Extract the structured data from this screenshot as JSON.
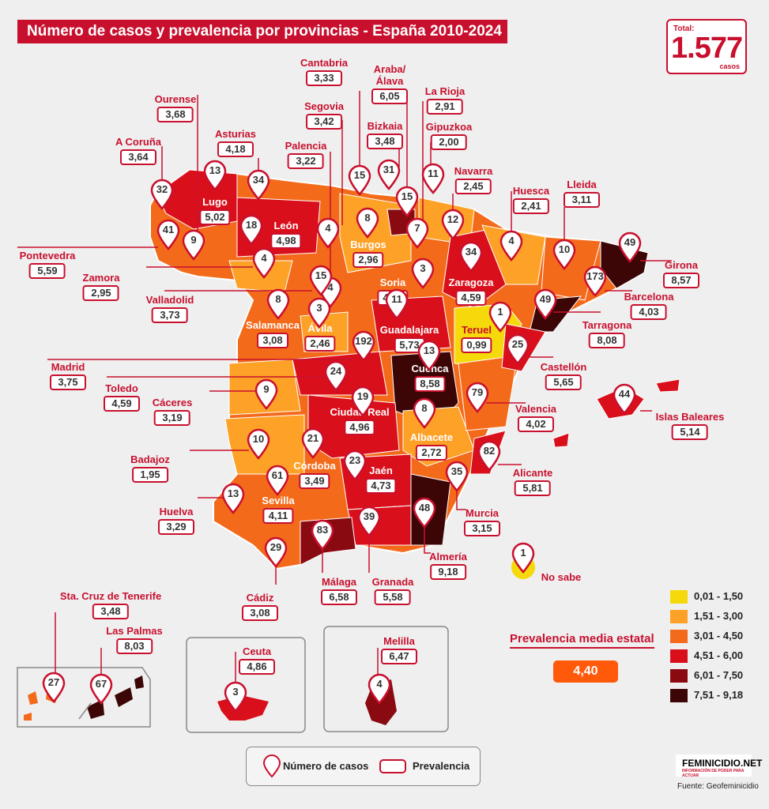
{
  "title": "Número de casos y prevalencia por provincias - España 2010-2024",
  "total": {
    "label": "Total:",
    "value": "1.577",
    "unit": "casos"
  },
  "provinces": [
    {
      "id": "cantabria",
      "name": "Cantabria",
      "cases": "15",
      "prevalence": "3,33"
    },
    {
      "id": "araba",
      "name": "Araba/ Álava",
      "cases": "15",
      "prevalence": "6,05"
    },
    {
      "id": "rioja",
      "name": "La Rioja",
      "cases": "7",
      "prevalence": "2,91"
    },
    {
      "id": "ourense",
      "name": "Ourense",
      "cases": "9",
      "prevalence": "3,68"
    },
    {
      "id": "segovia",
      "name": "Segovia",
      "cases": "4",
      "prevalence": "3,42"
    },
    {
      "id": "bizkaia",
      "name": "Bizkaia",
      "cases": "31",
      "prevalence": "3,48"
    },
    {
      "id": "gipuzkoa",
      "name": "Gipuzkoa",
      "cases": "11",
      "prevalence": "2,00"
    },
    {
      "id": "coruna",
      "name": "A Coruña",
      "cases": "32",
      "prevalence": "3,64"
    },
    {
      "id": "asturias",
      "name": "Asturias",
      "cases": "34",
      "prevalence": "4,18"
    },
    {
      "id": "palencia",
      "name": "Palencia",
      "cases": "4",
      "prevalence": "3,22"
    },
    {
      "id": "navarra",
      "name": "Navarra",
      "cases": "12",
      "prevalence": "2,45"
    },
    {
      "id": "huesca",
      "name": "Huesca",
      "cases": "4",
      "prevalence": "2,41"
    },
    {
      "id": "lleida",
      "name": "Lleida",
      "cases": "10",
      "prevalence": "3,11"
    },
    {
      "id": "lugo",
      "name": "Lugo",
      "cases": "13",
      "prevalence": "5,02"
    },
    {
      "id": "leon",
      "name": "León",
      "cases": "18",
      "prevalence": "4,98"
    },
    {
      "id": "burgos",
      "name": "Burgos",
      "cases": "8",
      "prevalence": "2,96"
    },
    {
      "id": "pontevedra",
      "name": "Pontevedra",
      "cases": "41",
      "prevalence": "5,59"
    },
    {
      "id": "zamora",
      "name": "Zamora",
      "cases": "4",
      "prevalence": "2,95"
    },
    {
      "id": "soria",
      "name": "Soria",
      "cases": "3",
      "prevalence": "4,46"
    },
    {
      "id": "zaragoza",
      "name": "Zaragoza",
      "cases": "34",
      "prevalence": "4,59"
    },
    {
      "id": "girona",
      "name": "Girona",
      "cases": "49",
      "prevalence": "8,57"
    },
    {
      "id": "barcelona",
      "name": "Barcelona",
      "cases": "173",
      "prevalence": "4,03"
    },
    {
      "id": "valladolid",
      "name": "Valladolid",
      "cases": "15",
      "prevalence": "3,73"
    },
    {
      "id": "salamanca",
      "name": "Salamanca",
      "cases": "8",
      "prevalence": "3,08"
    },
    {
      "id": "avila",
      "name": "Ávila",
      "cases": "3",
      "prevalence": "2,46"
    },
    {
      "id": "guadalajara",
      "name": "Guadalajara",
      "cases": "11",
      "prevalence": "5,73"
    },
    {
      "id": "teruel",
      "name": "Teruel",
      "cases": "1",
      "prevalence": "0,99"
    },
    {
      "id": "tarragona",
      "name": "Tarragona",
      "cases": "49",
      "prevalence": "8,08"
    },
    {
      "id": "madrid",
      "name": "Madrid",
      "cases": "192",
      "prevalence": "3,75"
    },
    {
      "id": "cuenca",
      "name": "Cuenca",
      "cases": "13",
      "prevalence": "8,58"
    },
    {
      "id": "castellon",
      "name": "Castellón",
      "cases": "25",
      "prevalence": "5,65"
    },
    {
      "id": "toledo",
      "name": "Toledo",
      "cases": "24",
      "prevalence": "4,59"
    },
    {
      "id": "caceres",
      "name": "Cáceres",
      "cases": "9",
      "prevalence": "3,19"
    },
    {
      "id": "ciudadreal",
      "name": "Ciudad Real",
      "cases": "19",
      "prevalence": "4,96"
    },
    {
      "id": "albacete",
      "name": "Albacete",
      "cases": "8",
      "prevalence": "2,72"
    },
    {
      "id": "valencia",
      "name": "Valencia",
      "cases": "79",
      "prevalence": "4,02"
    },
    {
      "id": "baleares",
      "name": "Islas Baleares",
      "cases": "44",
      "prevalence": "5,14"
    },
    {
      "id": "badajoz",
      "name": "Badajoz",
      "cases": "10",
      "prevalence": "1,95"
    },
    {
      "id": "cordoba",
      "name": "Córdoba",
      "cases": "21",
      "prevalence": "3,49"
    },
    {
      "id": "jaen",
      "name": "Jaén",
      "cases": "23",
      "prevalence": "4,73"
    },
    {
      "id": "alicante",
      "name": "Alicante",
      "cases": "82",
      "prevalence": "5,81"
    },
    {
      "id": "sevilla",
      "name": "Sevilla",
      "cases": "61",
      "prevalence": "4,11"
    },
    {
      "id": "huelva",
      "name": "Huelva",
      "cases": "13",
      "prevalence": "3,29"
    },
    {
      "id": "murcia",
      "name": "Murcia",
      "cases": "35",
      "prevalence": "3,15"
    },
    {
      "id": "almeria",
      "name": "Almería",
      "cases": "48",
      "prevalence": "9,18"
    },
    {
      "id": "cadiz",
      "name": "Cádiz",
      "cases": "29",
      "prevalence": "3,08"
    },
    {
      "id": "malaga",
      "name": "Málaga",
      "cases": "83",
      "prevalence": "6,58"
    },
    {
      "id": "granada",
      "name": "Granada",
      "cases": "39",
      "prevalence": "5,58"
    },
    {
      "id": "tenerife",
      "name": "Sta. Cruz de Tenerife",
      "cases": "27",
      "prevalence": "3,48"
    },
    {
      "id": "laspalmas",
      "name": "Las Palmas",
      "cases": "67",
      "prevalence": "8,03"
    },
    {
      "id": "ceuta",
      "name": "Ceuta",
      "cases": "3",
      "prevalence": "4,86"
    },
    {
      "id": "melilla",
      "name": "Melilla",
      "cases": "4",
      "prevalence": "6,47"
    }
  ],
  "unknown": {
    "label": "No sabe",
    "cases": "1"
  },
  "national_avg": {
    "label": "Prevalencia media estatal",
    "value": "4,40"
  },
  "legend": [
    {
      "range": "0,01 - 1,50",
      "color": "#f5d90a"
    },
    {
      "range": "1,51 - 3,00",
      "color": "#fda127"
    },
    {
      "range": "3,01 - 4,50",
      "color": "#f46a1b"
    },
    {
      "range": "4,51 - 6,00",
      "color": "#d9101c"
    },
    {
      "range": "6,01 - 7,50",
      "color": "#8a0a12"
    },
    {
      "range": "7,51 - 9,18",
      "color": "#3d0606"
    }
  ],
  "key": {
    "cases_label": "Número de casos",
    "prevalence_label": "Prevalencia"
  },
  "brand": {
    "name": "FEMINICIDIO.NET",
    "tagline": "INFORMACIÓN DE PODER PARA ACTUAR"
  },
  "source": "Fuente: Geofeminicidio"
}
